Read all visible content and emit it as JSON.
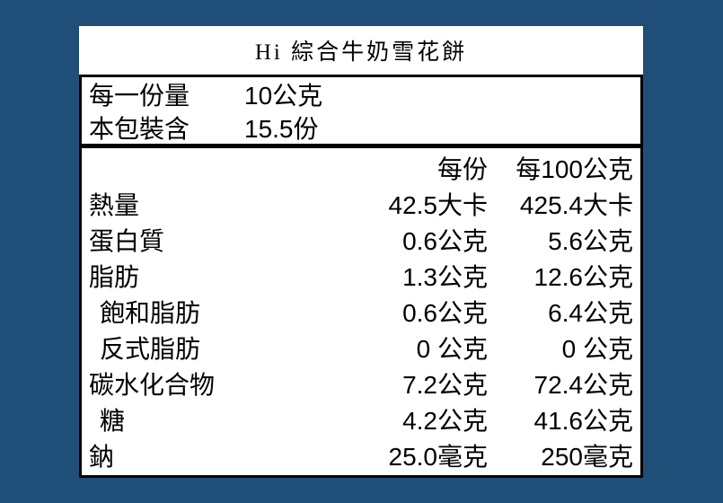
{
  "page": {
    "background_color": "#1f4e79",
    "card_background": "#ffffff",
    "border_color": "#000000",
    "text_color": "#000000"
  },
  "title": "Hi 綜合牛奶雪花餅",
  "serving_info": {
    "rows": [
      {
        "label": "每一份量",
        "value": "10公克"
      },
      {
        "label": "本包裝含",
        "value": "15.5份"
      }
    ]
  },
  "nutrition_table": {
    "header": {
      "per_serving": "每份",
      "per_100g": "每100公克"
    },
    "rows": [
      {
        "label": "熱量",
        "per_serving": "42.5大卡",
        "per_100g": "425.4大卡"
      },
      {
        "label": "蛋白質",
        "per_serving": "0.6公克",
        "per_100g": "5.6公克"
      },
      {
        "label": "脂肪",
        "per_serving": "1.3公克",
        "per_100g": "12.6公克"
      },
      {
        "label": "飽和脂肪",
        "per_serving": "0.6公克",
        "per_100g": "6.4公克"
      },
      {
        "label": "反式脂肪",
        "per_serving": "0 公克",
        "per_100g": "0 公克"
      },
      {
        "label": "碳水化合物",
        "per_serving": "7.2公克",
        "per_100g": "72.4公克"
      },
      {
        "label": "糖",
        "per_serving": "4.2公克",
        "per_100g": "41.6公克"
      },
      {
        "label": "鈉",
        "per_serving": "25.0毫克",
        "per_100g": "250毫克"
      }
    ]
  }
}
